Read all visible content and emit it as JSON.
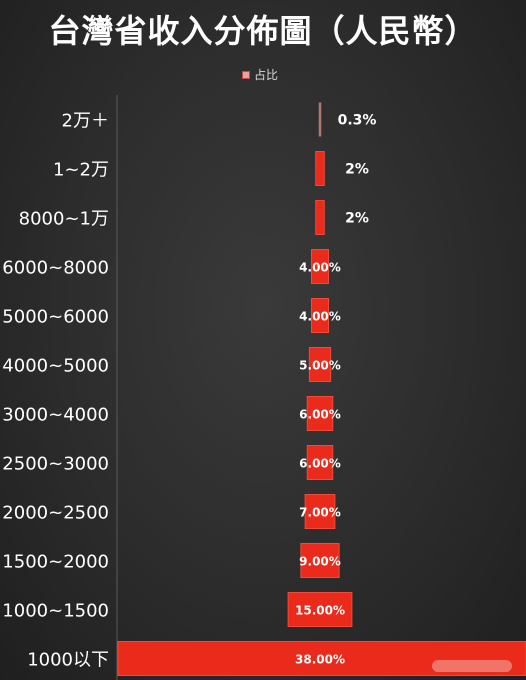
{
  "title": "台灣省收入分佈圖（人民幣）",
  "legend": {
    "label": "占比"
  },
  "colors": {
    "bar": "#ea2a1b",
    "bar_stroke": "#f04a3a",
    "axis": "#5a5a5a",
    "category_text": "#ffffff",
    "label_text": "#ffffff"
  },
  "chart_data": {
    "type": "bar",
    "orientation": "horizontal-centered",
    "categories": [
      "2万＋",
      "1~2万",
      "8000~1万",
      "6000~8000",
      "5000~6000",
      "4000~5000",
      "3000~4000",
      "2500~3000",
      "2000~2500",
      "1500~2000",
      "1000~1500",
      "1000以下"
    ],
    "series": [
      {
        "name": "占比",
        "values": [
          0.3,
          2,
          2,
          4,
          4,
          5,
          6,
          6,
          7,
          9,
          15,
          38
        ]
      }
    ],
    "value_labels": [
      "0.3%",
      "2%",
      "2%",
      "4.00%",
      "4.00%",
      "5.00%",
      "6.00%",
      "6.00%",
      "7.00%",
      "9.00%",
      "15.00%",
      "38.00%"
    ],
    "legend_position": "top-center",
    "grid": false
  }
}
